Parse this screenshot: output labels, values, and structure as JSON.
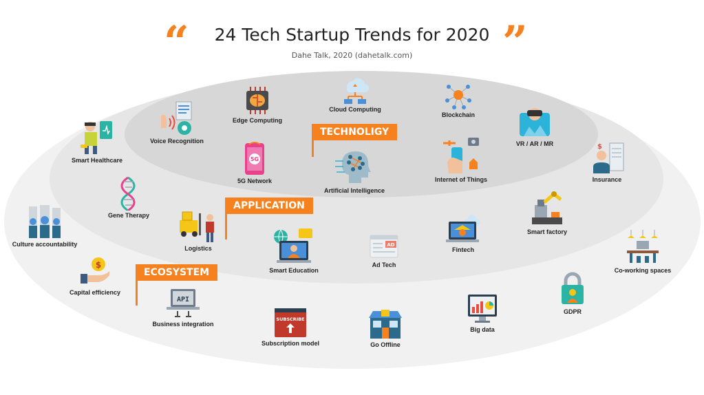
{
  "header": {
    "title": "24 Tech Startup Trends for 2020",
    "subtitle": "Dahe Talk, 2020 (dahetalk.com)",
    "open_quote": "“",
    "close_quote": "”"
  },
  "colors": {
    "accent": "#f5811f",
    "outer_ring": "#f1f1f1",
    "middle_ring": "#e6e6e6",
    "inner_ring": "#d7d7d7"
  },
  "layers": {
    "technology": "TECHNOLIGY",
    "application": "APPLICATION",
    "ecosystem": "ECOSYSTEM"
  },
  "trends": {
    "edge_computing": {
      "label": "Edge Computing",
      "icon": "chip-brain-icon"
    },
    "cloud_computing": {
      "label": "Cloud Computing",
      "icon": "cloud-network-icon"
    },
    "blockchain": {
      "label": "Blockchain",
      "icon": "blockchain-icon"
    },
    "voice_recognition": {
      "label": "Voice Recognition",
      "icon": "voice-icon"
    },
    "vr_ar_mr": {
      "label": "VR / AR / MR",
      "icon": "vr-headset-icon"
    },
    "smart_healthcare": {
      "label": "Smart Healthcare",
      "icon": "health-monitor-icon"
    },
    "network_5g": {
      "label": "5G Network",
      "icon": "phone-5g-icon"
    },
    "ai": {
      "label": "Artificial Intelligence",
      "icon": "ai-head-icon"
    },
    "iot": {
      "label": "Internet of Things",
      "icon": "iot-hand-icon"
    },
    "insurance": {
      "label": "Insurance",
      "icon": "insurance-agent-icon"
    },
    "gene_therapy": {
      "label": "Gene Therapy",
      "icon": "dna-icon"
    },
    "logistics": {
      "label": "Logistics",
      "icon": "forklift-icon"
    },
    "smart_factory": {
      "label": "Smart factory",
      "icon": "robot-arm-icon"
    },
    "culture": {
      "label": "Culture accountability",
      "icon": "team-icon"
    },
    "fintech": {
      "label": "Fintech",
      "icon": "fintech-laptop-icon"
    },
    "smart_education": {
      "label": "Smart Education",
      "icon": "online-class-icon"
    },
    "ad_tech": {
      "label": "Ad Tech",
      "icon": "ad-browser-icon"
    },
    "capital": {
      "label": "Capital efficiency",
      "icon": "coin-hand-icon"
    },
    "coworking": {
      "label": "Co-working spaces",
      "icon": "coworking-icon"
    },
    "business_integration": {
      "label": "Business integration",
      "icon": "api-laptop-icon"
    },
    "gdpr": {
      "label": "GDPR",
      "icon": "padlock-icon"
    },
    "big_data": {
      "label": "Big data",
      "icon": "dashboard-monitor-icon"
    },
    "subscription": {
      "label": "Subscription model",
      "icon": "subscribe-button-icon"
    },
    "go_offline": {
      "label": "Go Offline",
      "icon": "store-icon"
    }
  }
}
